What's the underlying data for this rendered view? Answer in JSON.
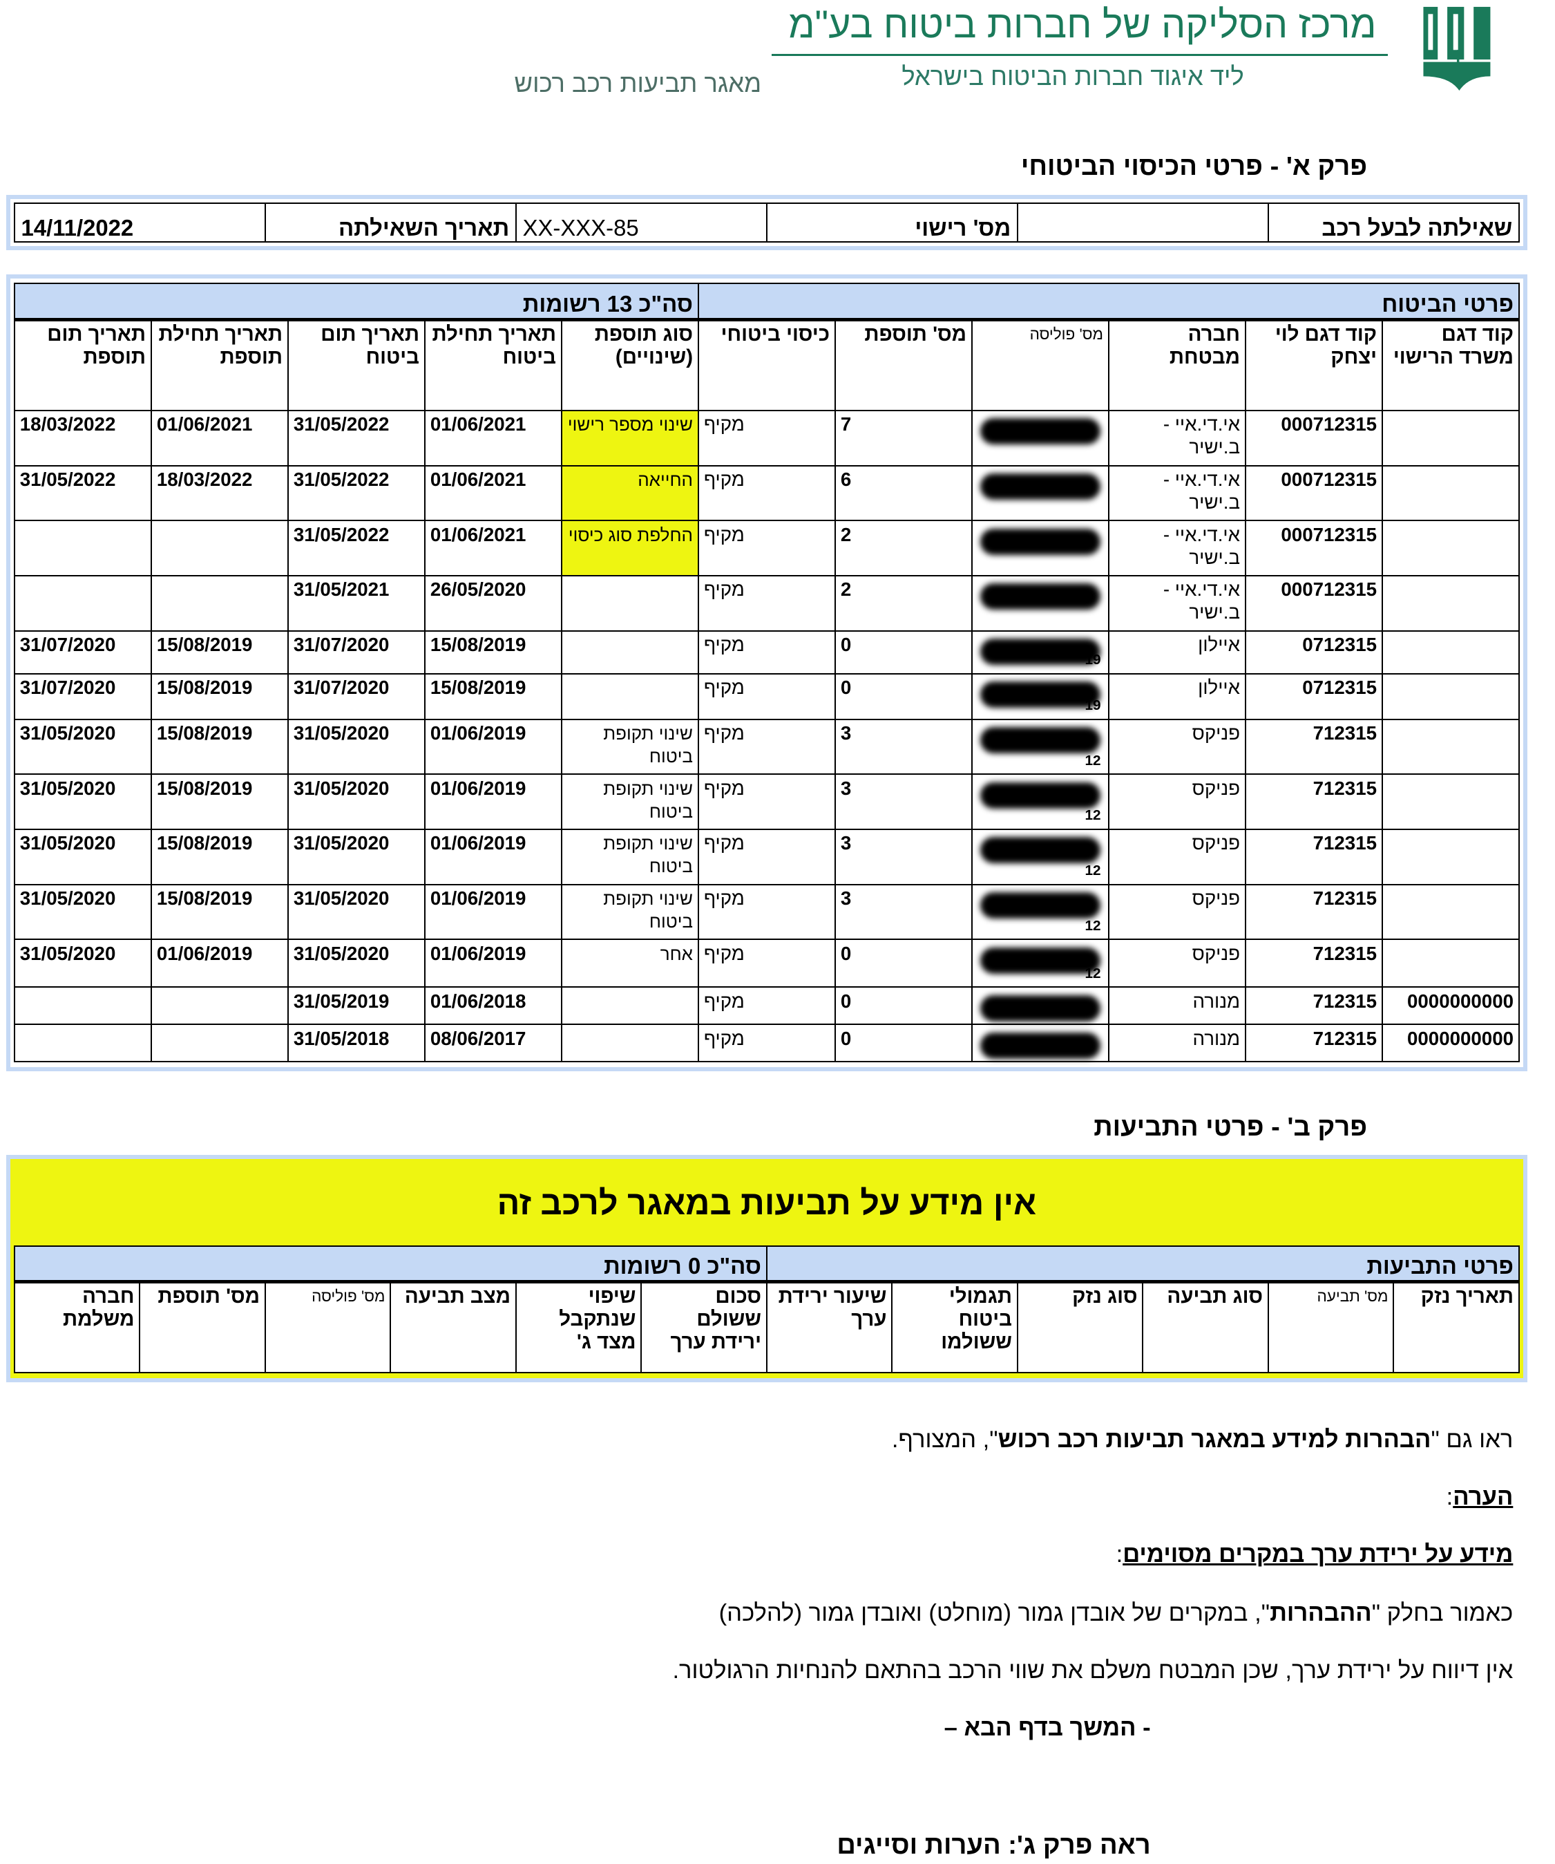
{
  "header": {
    "logo_text": "מנס",
    "org_title": "מרכז הסליקה של חברות ביטוח בע\"מ",
    "org_subtitle": "ליד איגוד חברות הביטוח בישראל",
    "database_name": "מאגר תביעות רכב רכוש",
    "brand_color": "#1a7a5a"
  },
  "part_a": {
    "title": "פרק א' - פרטי הכיסוי הביטוחי",
    "query": {
      "query_label": "שאילתה לבעל רכב",
      "query_value": "",
      "license_label": "מס' רישוי",
      "license_value": "XX-XXX-85",
      "date_label": "תאריך השאילתה",
      "date_value": "14/11/2022"
    },
    "section_label": "פרטי הביטוח",
    "total_label": "סה\"כ 13 רשומות",
    "columns": [
      "קוד דגם משרד הרישוי",
      "קוד דגם לוי יצחק",
      "חברה מבטחת",
      "מס' פוליסה",
      "מס' תוספת",
      "כיסוי ביטוחי",
      "סוג תוספת (שינויים)",
      "תאריך תחילת ביטוח",
      "תאריך תום ביטוח",
      "תאריך תחילת תוספת",
      "תאריך תום תוספת"
    ],
    "rows": [
      {
        "model_code": "",
        "levi_code": "000712315",
        "insurer": "אי.די.איי - ב.ישיר",
        "policy_suffix": "",
        "addendum_no": "7",
        "coverage": "מקיף",
        "addendum_type": "שינוי מספר רישוי",
        "highlight": true,
        "start": "01/06/2021",
        "end": "31/05/2022",
        "add_start": "01/06/2021",
        "add_end": "18/03/2022"
      },
      {
        "model_code": "",
        "levi_code": "000712315",
        "insurer": "אי.די.איי - ב.ישיר",
        "policy_suffix": "",
        "addendum_no": "6",
        "coverage": "מקיף",
        "addendum_type": "החייאה",
        "highlight": true,
        "start": "01/06/2021",
        "end": "31/05/2022",
        "add_start": "18/03/2022",
        "add_end": "31/05/2022"
      },
      {
        "model_code": "",
        "levi_code": "000712315",
        "insurer": "אי.די.איי - ב.ישיר",
        "policy_suffix": "",
        "addendum_no": "2",
        "coverage": "מקיף",
        "addendum_type": "החלפת סוג כיסוי",
        "highlight": true,
        "start": "01/06/2021",
        "end": "31/05/2022",
        "add_start": "",
        "add_end": ""
      },
      {
        "model_code": "",
        "levi_code": "000712315",
        "insurer": "אי.די.איי - ב.ישיר",
        "policy_suffix": "",
        "addendum_no": "2",
        "coverage": "מקיף",
        "addendum_type": "",
        "highlight": false,
        "start": "26/05/2020",
        "end": "31/05/2021",
        "add_start": "",
        "add_end": ""
      },
      {
        "model_code": "",
        "levi_code": "0712315",
        "insurer": "איילון",
        "policy_suffix": "19",
        "addendum_no": "0",
        "coverage": "מקיף",
        "addendum_type": "",
        "highlight": false,
        "start": "15/08/2019",
        "end": "31/07/2020",
        "add_start": "15/08/2019",
        "add_end": "31/07/2020"
      },
      {
        "model_code": "",
        "levi_code": "0712315",
        "insurer": "איילון",
        "policy_suffix": "19",
        "addendum_no": "0",
        "coverage": "מקיף",
        "addendum_type": "",
        "highlight": false,
        "start": "15/08/2019",
        "end": "31/07/2020",
        "add_start": "15/08/2019",
        "add_end": "31/07/2020"
      },
      {
        "model_code": "",
        "levi_code": "712315",
        "insurer": "פניקס",
        "policy_suffix": "12",
        "addendum_no": "3",
        "coverage": "מקיף",
        "addendum_type": "שינוי תקופת ביטוח",
        "highlight": false,
        "start": "01/06/2019",
        "end": "31/05/2020",
        "add_start": "15/08/2019",
        "add_end": "31/05/2020"
      },
      {
        "model_code": "",
        "levi_code": "712315",
        "insurer": "פניקס",
        "policy_suffix": "12",
        "addendum_no": "3",
        "coverage": "מקיף",
        "addendum_type": "שינוי תקופת ביטוח",
        "highlight": false,
        "start": "01/06/2019",
        "end": "31/05/2020",
        "add_start": "15/08/2019",
        "add_end": "31/05/2020"
      },
      {
        "model_code": "",
        "levi_code": "712315",
        "insurer": "פניקס",
        "policy_suffix": "12",
        "addendum_no": "3",
        "coverage": "מקיף",
        "addendum_type": "שינוי תקופת ביטוח",
        "highlight": false,
        "start": "01/06/2019",
        "end": "31/05/2020",
        "add_start": "15/08/2019",
        "add_end": "31/05/2020"
      },
      {
        "model_code": "",
        "levi_code": "712315",
        "insurer": "פניקס",
        "policy_suffix": "12",
        "addendum_no": "3",
        "coverage": "מקיף",
        "addendum_type": "שינוי תקופת ביטוח",
        "highlight": false,
        "start": "01/06/2019",
        "end": "31/05/2020",
        "add_start": "15/08/2019",
        "add_end": "31/05/2020"
      },
      {
        "model_code": "",
        "levi_code": "712315",
        "insurer": "פניקס",
        "policy_suffix": "12",
        "addendum_no": "0",
        "coverage": "מקיף",
        "addendum_type": "אחר",
        "highlight": false,
        "start": "01/06/2019",
        "end": "31/05/2020",
        "add_start": "01/06/2019",
        "add_end": "31/05/2020"
      },
      {
        "model_code": "0000000000",
        "levi_code": "712315",
        "insurer": "מנורה",
        "policy_suffix": "",
        "addendum_no": "0",
        "coverage": "מקיף",
        "addendum_type": "",
        "highlight": false,
        "start": "01/06/2018",
        "end": "31/05/2019",
        "add_start": "",
        "add_end": ""
      },
      {
        "model_code": "0000000000",
        "levi_code": "712315",
        "insurer": "מנורה",
        "policy_suffix": "",
        "addendum_no": "0",
        "coverage": "מקיף",
        "addendum_type": "",
        "highlight": false,
        "start": "08/06/2017",
        "end": "31/05/2018",
        "add_start": "",
        "add_end": ""
      }
    ]
  },
  "part_b": {
    "title": "פרק ב' - פרטי התביעות",
    "no_claims_message": "אין מידע על תביעות במאגר לרכב זה",
    "section_label": "פרטי התביעות",
    "total_label": "סה\"כ 0 רשומות",
    "columns": [
      "תאריך נזק",
      "מס' תביעה",
      "סוג תביעה",
      "סוג נזק",
      "תגמולי ביטוח ששולמו",
      "שיעור ירידת ערך",
      "סכום ששולם ירידת ערך",
      "שיפוי שנתקבל מצד ג'",
      "מצב תביעה",
      "מס' פוליסה",
      "מס' תוספת",
      "חברה משלמת"
    ]
  },
  "notes": {
    "see_also_prefix": "ראו גם \"",
    "see_also_bold": "הבהרות למידע במאגר תביעות רכב רכוש",
    "see_also_suffix": "\", המצורף.",
    "remark_heading": "הערה",
    "depreciation_heading": "מידע על ירידת ערך במקרים מסוימים",
    "line1_prefix": "כאמור בחלק \"",
    "line1_bold": "ההבהרות",
    "line1_suffix": "\", במקרים של אובדן גמור (מוחלט) ואובדן גמור (להלכה)",
    "line2": "אין דיווח על ירידת ערך, שכן המבטח משלם את שווי הרכב בהתאם להנחיות הרגולטור.",
    "continued": "- המשך בדף הבא –",
    "see_part_c": "ראה פרק ג': הערות וסייגים"
  },
  "colors": {
    "band": "#c5d9f5",
    "highlight": "#eef511"
  }
}
